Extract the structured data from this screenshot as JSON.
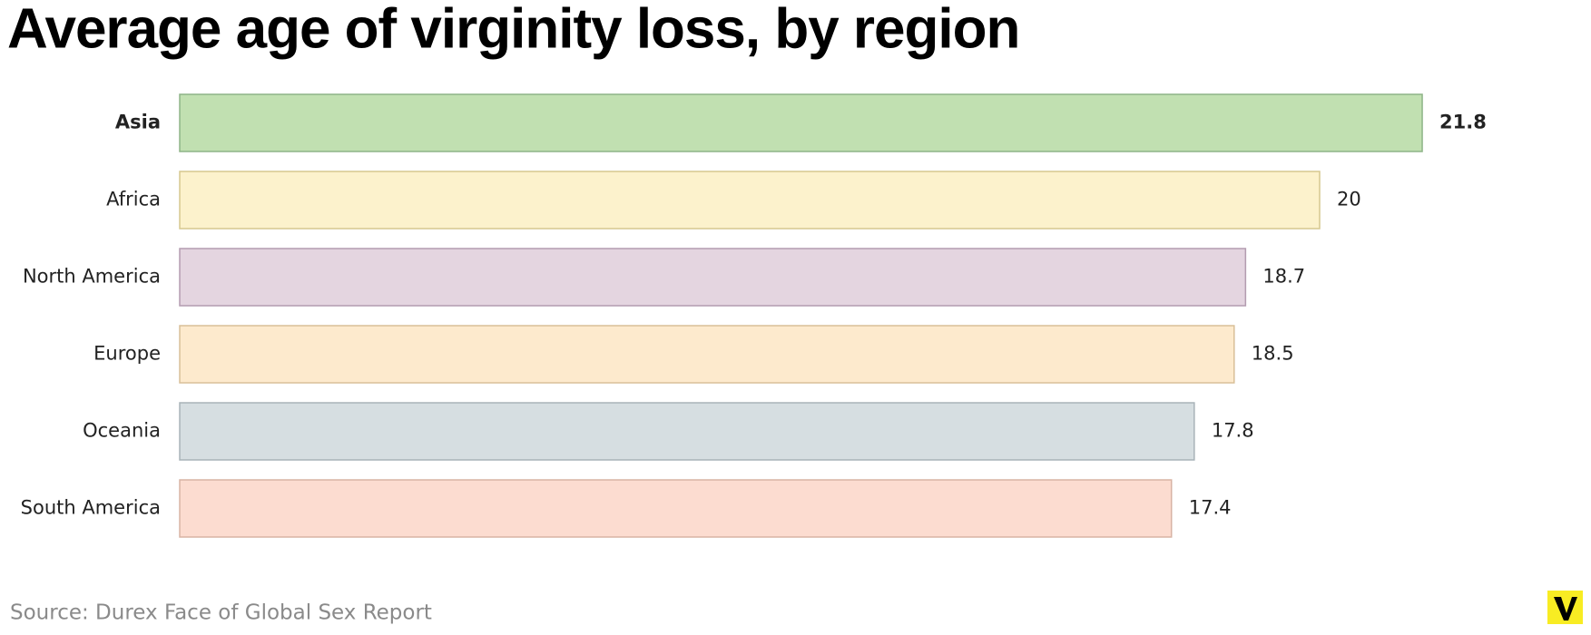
{
  "chart_data": {
    "type": "bar",
    "orientation": "horizontal",
    "title": "Average age of virginity loss, by region",
    "categories": [
      "Asia",
      "Africa",
      "North America",
      "Europe",
      "Oceania",
      "South America"
    ],
    "values": [
      21.8,
      20,
      18.7,
      18.5,
      17.8,
      17.4
    ],
    "colors": [
      "#c1e0b1",
      "#fcf2cc",
      "#e4d5e0",
      "#fdeacd",
      "#d6dee1",
      "#fcdcd0"
    ],
    "border_colors": [
      "#8db487",
      "#d6c88f",
      "#b39cb0",
      "#d8bf98",
      "#a8b3b8",
      "#d8b3a4"
    ],
    "source": "Source: Durex Face of Global Sex Report"
  }
}
